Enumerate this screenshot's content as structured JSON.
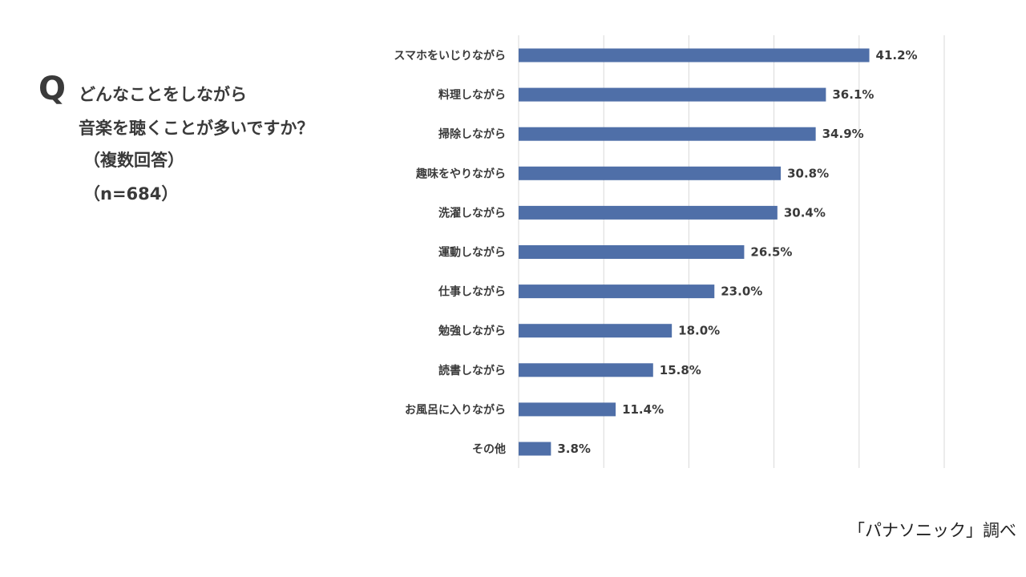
{
  "question": {
    "mark": "Q",
    "line1": "どんなことをしながら",
    "line2": "音楽を聴くことが多いですか？",
    "line3": "（複数回答）",
    "line4": "（n=684）"
  },
  "source": "「パナソニック」調べ",
  "colors": {
    "bar": "#4f6fa8",
    "grid": "#d9d9d9"
  },
  "chart_data": {
    "type": "bar",
    "orientation": "horizontal",
    "categories": [
      "スマホをいじりながら",
      "料理しながら",
      "掃除しながら",
      "趣味をやりながら",
      "洗濯しながら",
      "運動しながら",
      "仕事しながら",
      "勉強しながら",
      "読書しながら",
      "お風呂に入りながら",
      "その他"
    ],
    "values": [
      41.2,
      36.1,
      34.9,
      30.8,
      30.4,
      26.5,
      23.0,
      18.0,
      15.8,
      11.4,
      3.8
    ],
    "value_labels": [
      "41.2%",
      "36.1%",
      "34.9%",
      "30.8%",
      "30.4%",
      "26.5%",
      "23.0%",
      "18.0%",
      "15.8%",
      "11.4%",
      "3.8%"
    ],
    "xlim": [
      0,
      50
    ],
    "grid": true,
    "legend": "none"
  }
}
